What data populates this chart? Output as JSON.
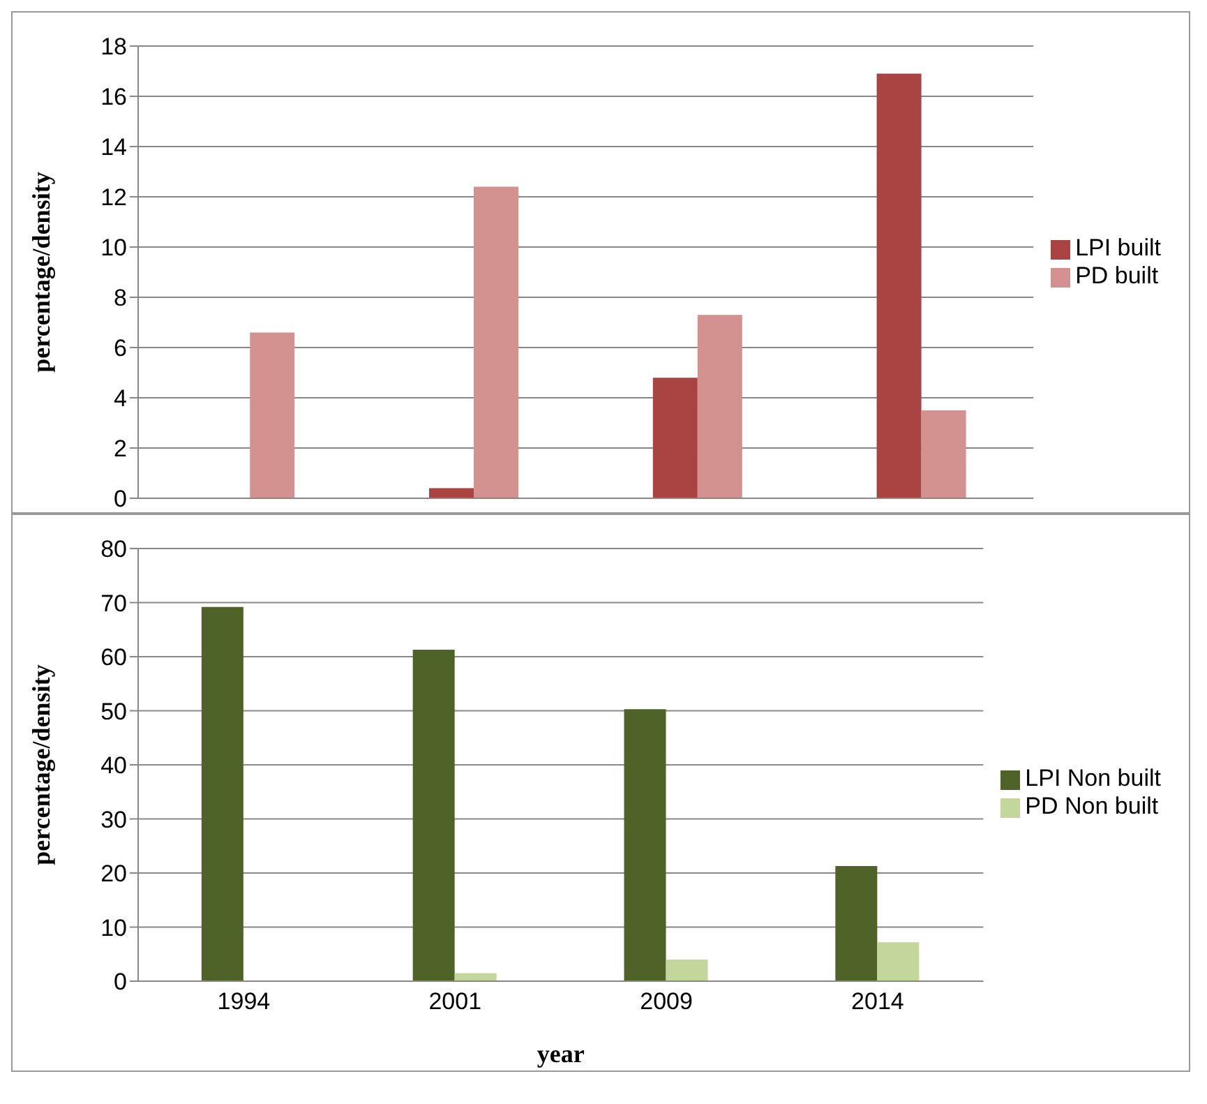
{
  "chart_data": [
    {
      "type": "bar",
      "ylabel": "percentage/density",
      "categories": [
        "1994",
        "2001",
        "2009",
        "2014"
      ],
      "series": [
        {
          "name": "LPI built",
          "color": "#a94442",
          "values": [
            0,
            0.4,
            4.8,
            16.9
          ]
        },
        {
          "name": "PD built",
          "color": "#d39290",
          "values": [
            6.6,
            12.4,
            7.3,
            3.5
          ]
        }
      ],
      "ylim": [
        0,
        18
      ],
      "yticks": [
        0,
        2,
        4,
        6,
        8,
        10,
        12,
        14,
        16,
        18
      ],
      "grid": "y",
      "legend": "right",
      "tick_labels": "y"
    },
    {
      "type": "bar",
      "xlabel": "year",
      "ylabel": "percentage/density",
      "categories": [
        "1994",
        "2001",
        "2009",
        "2014"
      ],
      "series": [
        {
          "name": "LPI Non built",
          "color": "#4f6228",
          "values": [
            69.2,
            61.3,
            50.3,
            21.3
          ]
        },
        {
          "name": "PD Non built",
          "color": "#c3d69b",
          "values": [
            null,
            1.5,
            4,
            7.2
          ]
        }
      ],
      "ylim": [
        0,
        80
      ],
      "yticks": [
        0,
        10,
        20,
        30,
        40,
        50,
        60,
        70,
        80
      ],
      "grid": "y",
      "legend": "right"
    }
  ]
}
